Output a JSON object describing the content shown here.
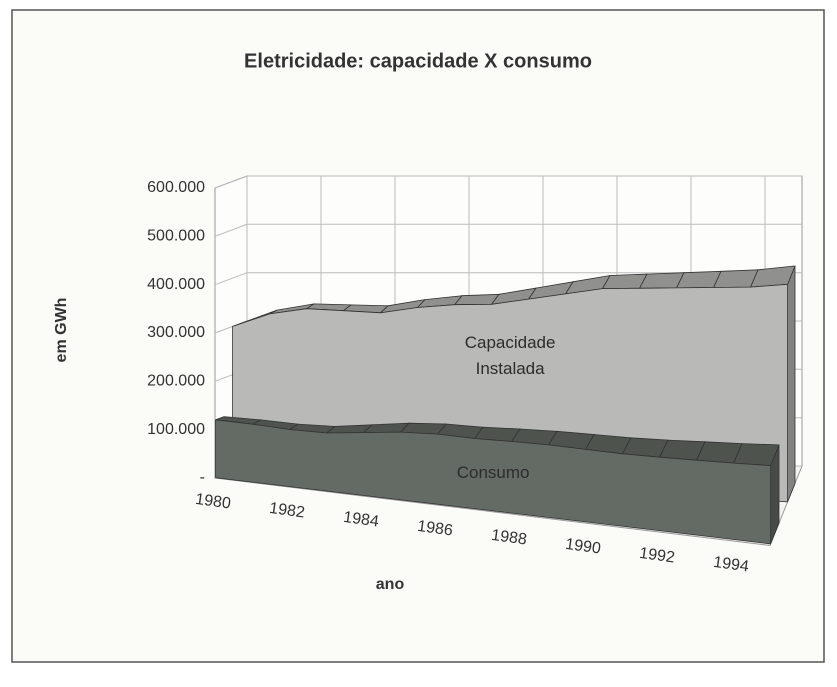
{
  "chart_data": {
    "type": "area3d",
    "title": "Eletricidade: capacidade X consumo",
    "xlabel": "ano",
    "ylabel": "em GWh",
    "categories": [
      "1980",
      null,
      "1982",
      null,
      "1984",
      null,
      "1986",
      null,
      "1988",
      null,
      "1990",
      null,
      "1992",
      null,
      "1994",
      null
    ],
    "series": [
      {
        "name": "Capacidade Instalada",
        "color": "#b9bab7",
        "values": [
          300000,
          330000,
          345000,
          345000,
          345000,
          360000,
          370000,
          375000,
          390000,
          405000,
          420000,
          425000,
          430000,
          435000,
          440000,
          450000
        ]
      },
      {
        "name": "Consumo",
        "color": "#646b64",
        "values": [
          120000,
          120000,
          118000,
          120000,
          130000,
          140000,
          145000,
          145000,
          148000,
          150000,
          150000,
          150000,
          152000,
          155000,
          158000,
          162000
        ]
      }
    ],
    "ylim": [
      0,
      600000
    ],
    "yticks": [
      {
        "value": 0,
        "label": "-"
      },
      {
        "value": 100000,
        "label": "100.000"
      },
      {
        "value": 200000,
        "label": "200.000"
      },
      {
        "value": 300000,
        "label": "300.000"
      },
      {
        "value": 400000,
        "label": "400.000"
      },
      {
        "value": 500000,
        "label": "500.000"
      },
      {
        "value": 600000,
        "label": "600.000"
      }
    ],
    "grid": true
  }
}
